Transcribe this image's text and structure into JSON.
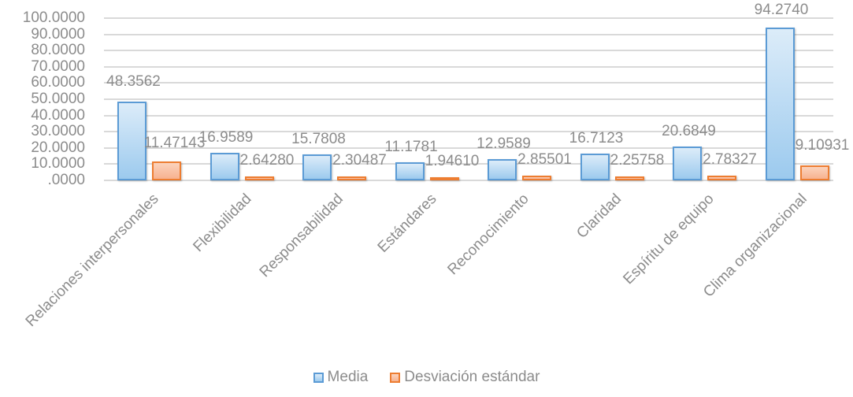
{
  "chart_data": {
    "type": "bar",
    "title": "",
    "xlabel": "",
    "ylabel": "",
    "ylim": [
      0,
      100
    ],
    "yticks": [
      ".0000",
      "10.0000",
      "20.0000",
      "30.0000",
      "40.0000",
      "50.0000",
      "60.0000",
      "70.0000",
      "80.0000",
      "90.0000",
      "100.0000"
    ],
    "grid": true,
    "legend_position": "bottom",
    "categories": [
      "Relaciones interpersonales",
      "Flexibilidad",
      "Responsabilidad",
      "Estándares",
      "Reconocimiento",
      "Claridad",
      "Espíritu de equipo",
      "Clima organizacional"
    ],
    "series": [
      {
        "name": "Media",
        "color": "#5b9bd5",
        "values": [
          48.3562,
          16.9589,
          15.7808,
          11.1781,
          12.9589,
          16.7123,
          20.6849,
          94.274
        ],
        "labels": [
          "48.3562",
          "16.9589",
          "15.7808",
          "11.1781",
          "12.9589",
          "16.7123",
          "20.6849",
          "94.2740"
        ]
      },
      {
        "name": "Desviación estándar",
        "color": "#ed7d31",
        "values": [
          11.47143,
          2.6428,
          2.30487,
          1.9461,
          2.85501,
          2.25758,
          2.78327,
          9.10931
        ],
        "labels": [
          "11.47143",
          "2.64280",
          "2.30487",
          "1.94610",
          "2.85501",
          "2.25758",
          "2.78327",
          "9.10931"
        ]
      }
    ]
  },
  "legend": {
    "items": [
      {
        "label": "Media",
        "icon": "blue-square-swatch"
      },
      {
        "label": "Desviación estándar",
        "icon": "orange-square-swatch"
      }
    ]
  }
}
